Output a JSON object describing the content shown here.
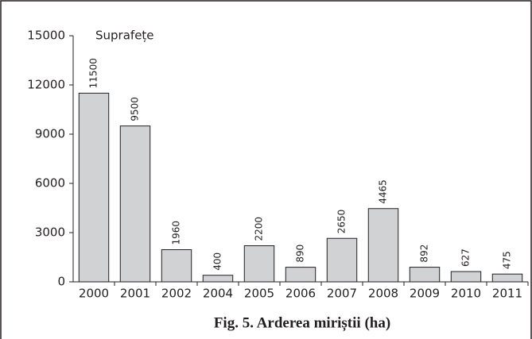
{
  "chart_data": {
    "type": "bar",
    "title": "Fig. 5. Arderea miriștii (ha)",
    "annotation": "Suprafețe",
    "categories": [
      "2000",
      "2001",
      "2002",
      "2004",
      "2005",
      "2006",
      "2007",
      "2008",
      "2009",
      "2010",
      "2011"
    ],
    "values": [
      11500,
      9500,
      1960,
      400,
      2200,
      890,
      2650,
      4465,
      892,
      627,
      475
    ],
    "color": "#d1d2d4",
    "ylim": [
      0,
      15000
    ],
    "yticks": [
      0,
      3000,
      6000,
      9000,
      12000,
      15000
    ],
    "grid": false,
    "data_labels": true
  }
}
